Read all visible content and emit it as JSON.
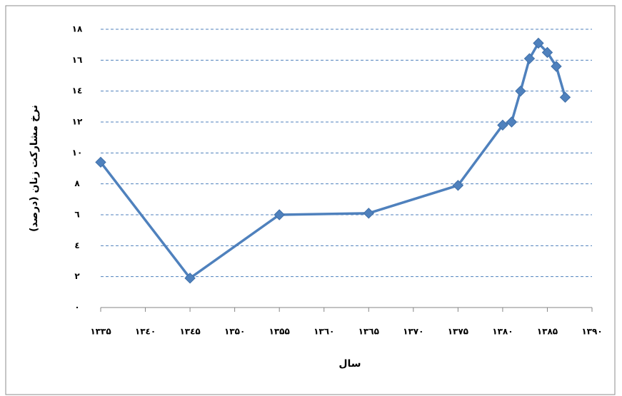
{
  "chart_data": {
    "type": "line",
    "y_label": "نرخ مشارکت زنان (درصد)",
    "x_label": "سال",
    "x": [
      1335,
      1345,
      1355,
      1365,
      1375,
      1380,
      1381,
      1382,
      1383,
      1384,
      1385,
      1386,
      1387
    ],
    "values": [
      9.4,
      1.9,
      6.0,
      6.1,
      7.9,
      11.8,
      12.0,
      14.0,
      16.1,
      17.1,
      16.5,
      15.6,
      13.6
    ],
    "color": "#4f81bd",
    "grid": true,
    "grid_color": "#4f81bd",
    "xlim": [
      1335,
      1390
    ],
    "ylim": [
      0,
      18
    ],
    "xticks": [
      {
        "value": 1335,
        "label": "۱۳۳۵"
      },
      {
        "value": 1340,
        "label": "۱۳٤۰"
      },
      {
        "value": 1345,
        "label": "۱۳٤۵"
      },
      {
        "value": 1350,
        "label": "۱۳۵۰"
      },
      {
        "value": 1355,
        "label": "۱۳۵۵"
      },
      {
        "value": 1360,
        "label": "۱۳٦۰"
      },
      {
        "value": 1365,
        "label": "۱۳٦۵"
      },
      {
        "value": 1370,
        "label": "۱۳۷۰"
      },
      {
        "value": 1375,
        "label": "۱۳۷۵"
      },
      {
        "value": 1380,
        "label": "۱۳۸۰"
      },
      {
        "value": 1385,
        "label": "۱۳۸۵"
      },
      {
        "value": 1390,
        "label": "۱۳۹۰"
      }
    ],
    "yticks": [
      {
        "value": 0,
        "label": "۰"
      },
      {
        "value": 2,
        "label": "۲"
      },
      {
        "value": 4,
        "label": "٤"
      },
      {
        "value": 6,
        "label": "٦"
      },
      {
        "value": 8,
        "label": "۸"
      },
      {
        "value": 10,
        "label": "۱۰"
      },
      {
        "value": 12,
        "label": "۱۲"
      },
      {
        "value": 14,
        "label": "۱٤"
      },
      {
        "value": 16,
        "label": "۱٦"
      },
      {
        "value": 18,
        "label": "۱۸"
      }
    ]
  }
}
